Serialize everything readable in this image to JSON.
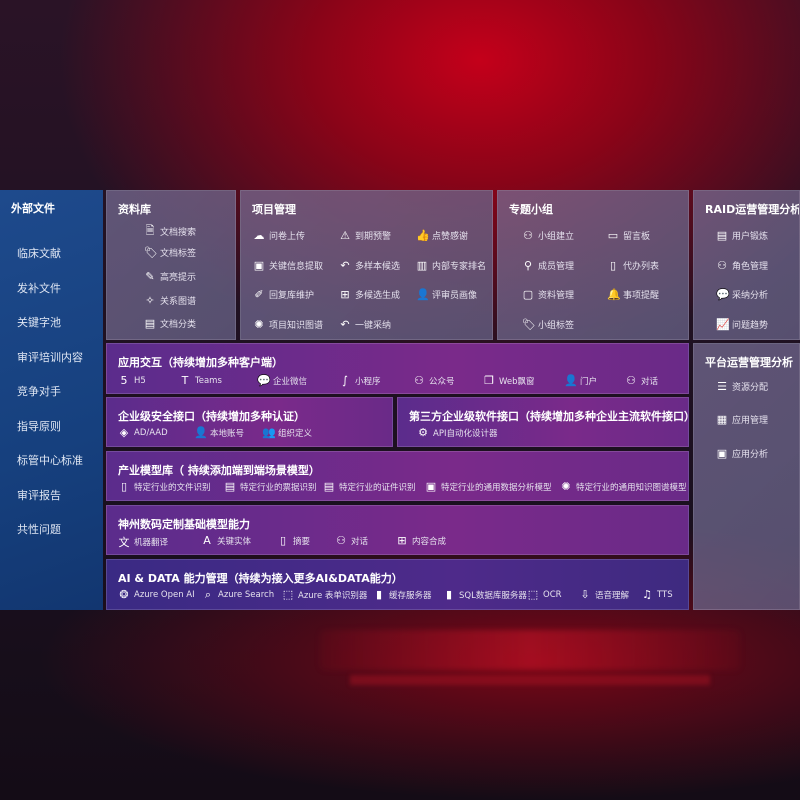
{
  "external": {
    "title": "外部文件",
    "items": [
      "临床文献",
      "发补文件",
      "关键字池",
      "审评培训内容",
      "竞争对手",
      "指导原则",
      "标管中心标准",
      "审评报告",
      "共性问题"
    ]
  },
  "library": {
    "title": "资料库",
    "items": [
      {
        "icon": "document-search-icon",
        "label": "文档搜索"
      },
      {
        "icon": "tag-icon",
        "label": "文档标签"
      },
      {
        "icon": "pen-icon",
        "label": "高亮提示"
      },
      {
        "icon": "graph-icon",
        "label": "关系图谱"
      },
      {
        "icon": "document-category-icon",
        "label": "文档分类"
      }
    ]
  },
  "project": {
    "title": "项目管理",
    "items": [
      {
        "icon": "cloud-upload-icon",
        "label": "问卷上传"
      },
      {
        "icon": "alarm-icon",
        "label": "到期预警"
      },
      {
        "icon": "thumbs-up-icon",
        "label": "点赞感谢"
      },
      {
        "icon": "info-extract-icon",
        "label": "关键信息提取"
      },
      {
        "icon": "reply-icon",
        "label": "多样本候选"
      },
      {
        "icon": "ranking-icon",
        "label": "内部专家排名"
      },
      {
        "icon": "edit-icon",
        "label": "回复库维护"
      },
      {
        "icon": "puzzle-icon",
        "label": "多候选生成"
      },
      {
        "icon": "user-icon",
        "label": "评审员画像"
      },
      {
        "icon": "knowledge-graph-icon",
        "label": "项目知识图谱"
      },
      {
        "icon": "reply-icon",
        "label": "一键采纳"
      }
    ]
  },
  "group": {
    "title": "专题小组",
    "items": [
      {
        "icon": "group-icon",
        "label": "小组建立"
      },
      {
        "icon": "bbs-icon",
        "label": "留言板"
      },
      {
        "icon": "member-icon",
        "label": "成员管理"
      },
      {
        "icon": "clipboard-icon",
        "label": "代办列表"
      },
      {
        "icon": "folder-icon",
        "label": "资料管理"
      },
      {
        "icon": "bell-icon",
        "label": "事项提醒"
      },
      {
        "icon": "tag-icon",
        "label": "小组标签"
      }
    ]
  },
  "raid": {
    "title": "RAID运营管理分析",
    "items": [
      {
        "icon": "id-card-icon",
        "label": "用户锻炼"
      },
      {
        "icon": "users-icon",
        "label": "角色管理"
      },
      {
        "icon": "qa-icon",
        "label": "采纳分析"
      },
      {
        "icon": "trend-icon",
        "label": "问题趋势"
      }
    ]
  },
  "platform": {
    "title": "平台运营管理分析",
    "items": [
      {
        "icon": "checklist-icon",
        "label": "资源分配"
      },
      {
        "icon": "apps-icon",
        "label": "应用管理"
      },
      {
        "icon": "analytics-icon",
        "label": "应用分析"
      }
    ]
  },
  "interaction": {
    "title": "应用交互（持续增加多种客户端）",
    "items": [
      {
        "icon": "html5-icon",
        "label": "H5"
      },
      {
        "icon": "teams-icon",
        "label": "Teams"
      },
      {
        "icon": "wecom-icon",
        "label": "企业微信"
      },
      {
        "icon": "miniprogram-icon",
        "label": "小程序"
      },
      {
        "icon": "official-account-icon",
        "label": "公众号"
      },
      {
        "icon": "window-icon",
        "label": "Web飘窗"
      },
      {
        "icon": "portal-icon",
        "label": "门户"
      },
      {
        "icon": "chat-icon",
        "label": "对话"
      }
    ]
  },
  "security": {
    "title": "企业级安全接口（持续增加多种认证）",
    "items": [
      {
        "icon": "azure-ad-icon",
        "label": "AD/AAD"
      },
      {
        "icon": "local-account-icon",
        "label": "本地账号"
      },
      {
        "icon": "organization-icon",
        "label": "组织定义"
      }
    ]
  },
  "thirdparty": {
    "title": "第三方企业级软件接口（持续增加多种企业主流软件接口）",
    "items": [
      {
        "icon": "gear-icon",
        "label": "API自动化设计器"
      }
    ]
  },
  "industry": {
    "title": "产业模型库（ 持续添加端到端场景模型）",
    "items": [
      {
        "icon": "file-icon",
        "label": "特定行业的文件识别"
      },
      {
        "icon": "receipt-icon",
        "label": "特定行业的票据识别"
      },
      {
        "icon": "id-card-icon",
        "label": "特定行业的证件识别"
      },
      {
        "icon": "chart-icon",
        "label": "特定行业的通用数据分析模型"
      },
      {
        "icon": "knowledge-graph-icon",
        "label": "特定行业的通用知识图谱模型"
      }
    ]
  },
  "foundation": {
    "title": "神州数码定制基础模型能力",
    "items": [
      {
        "icon": "translate-icon",
        "label": "机器翻译"
      },
      {
        "icon": "entity-icon",
        "label": "关键实体"
      },
      {
        "icon": "summary-icon",
        "label": "摘要"
      },
      {
        "icon": "chat-icon",
        "label": "对话"
      },
      {
        "icon": "puzzle-icon",
        "label": "内容合成"
      }
    ]
  },
  "aidata": {
    "title": "AI & DATA 能力管理（持续为接入更多AI&DATA能力）",
    "items": [
      {
        "icon": "openai-icon",
        "label": "Azure Open AI"
      },
      {
        "icon": "search-icon",
        "label": "Azure Search"
      },
      {
        "icon": "form-recognizer-icon",
        "label": "Azure 表单识别器"
      },
      {
        "icon": "cache-server-icon",
        "label": "缓存服务器"
      },
      {
        "icon": "sql-database-icon",
        "label": "SQL数据库服务器"
      },
      {
        "icon": "ocr-icon",
        "label": "OCR"
      },
      {
        "icon": "speech-icon",
        "label": "语音理解"
      },
      {
        "icon": "tts-icon",
        "label": "TTS"
      }
    ]
  }
}
